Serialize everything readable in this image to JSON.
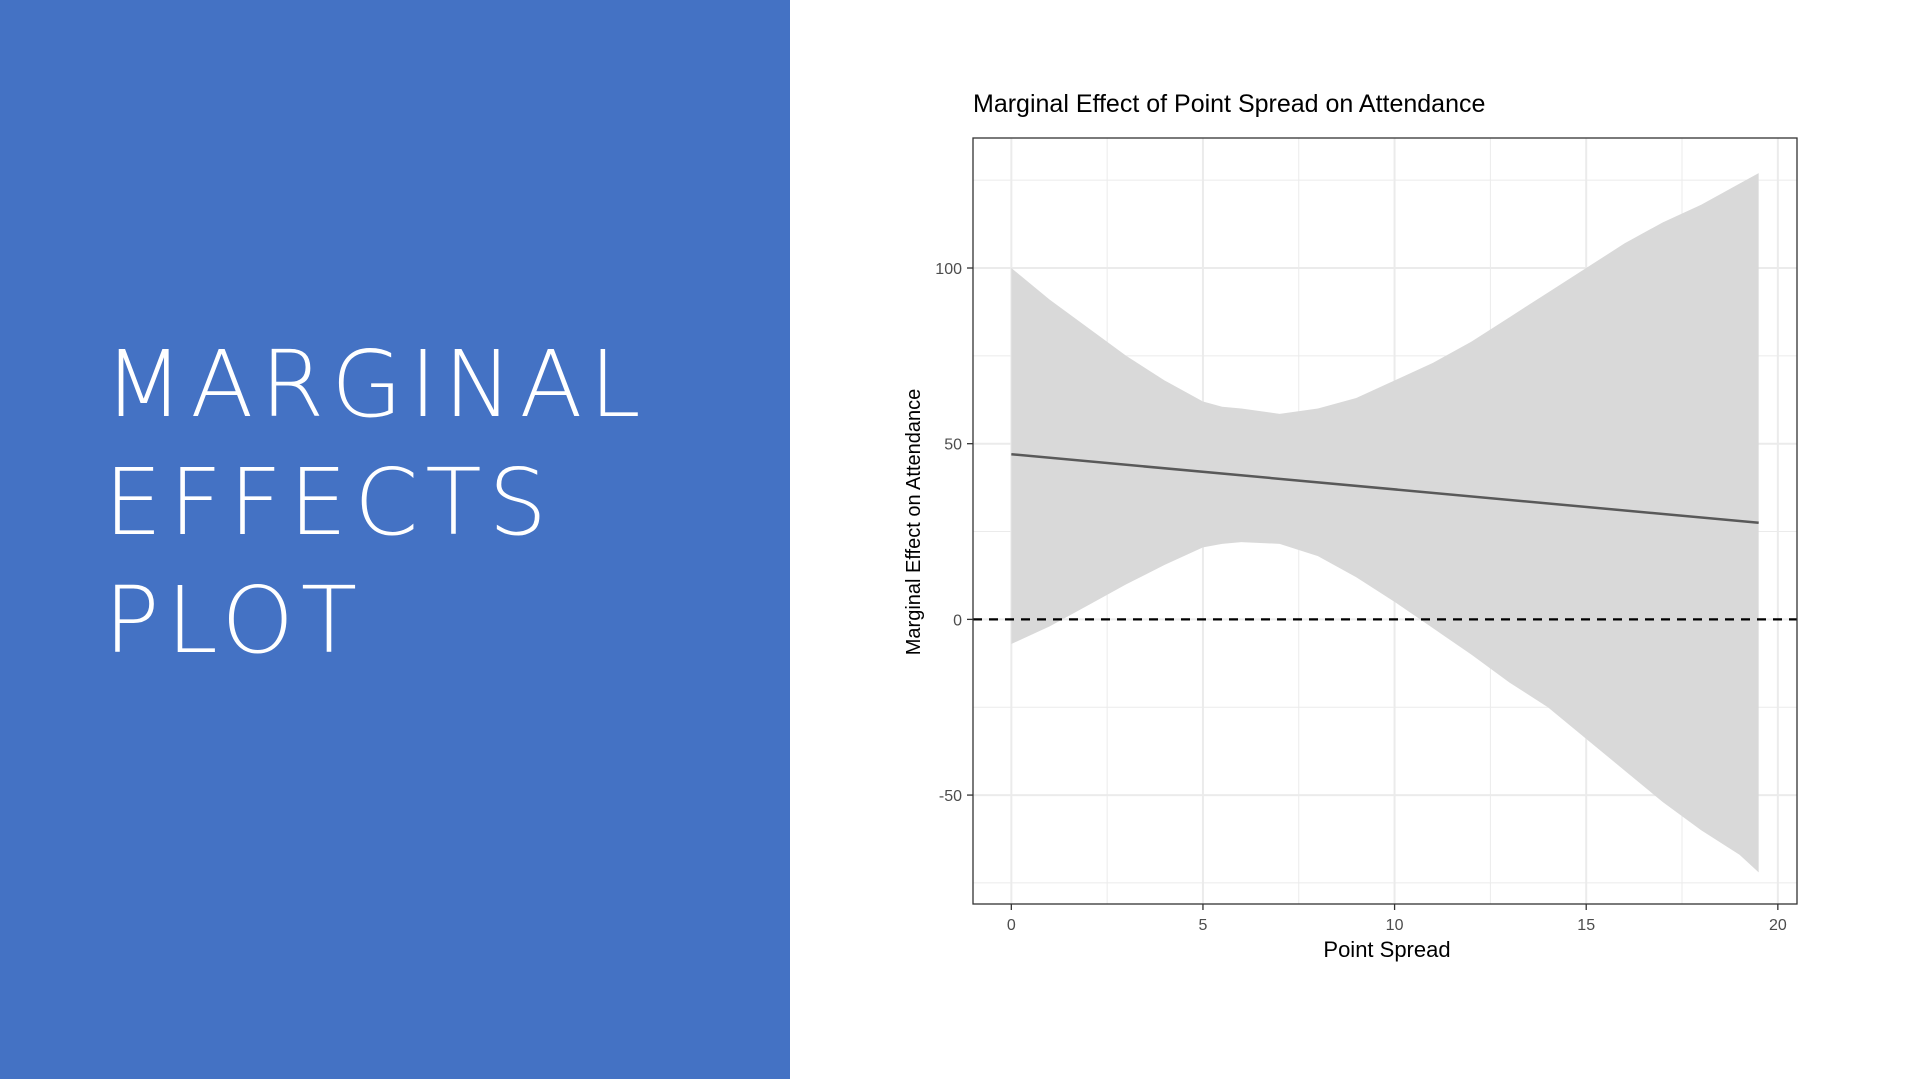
{
  "colors": {
    "panel_bg": "#4472c4",
    "panel_text": "#ffffff",
    "ribbon": "#d9d9d9",
    "line": "#595959",
    "zero_line": "#000000",
    "grid": "#ebebeb"
  },
  "slide": {
    "title_lines": [
      "MARGINAL",
      "EFFECTS",
      "PLOT"
    ]
  },
  "chart_data": {
    "type": "line",
    "title": "Marginal Effect of Point Spread on Attendance",
    "xlabel": "Point Spread",
    "ylabel": "Marginal Effect on Attendance",
    "xlim": [
      -1,
      20.5
    ],
    "ylim": [
      -81,
      137
    ],
    "x_ticks": [
      0,
      5,
      10,
      15,
      20
    ],
    "x_tick_labels": [
      "0",
      "5",
      "10",
      "15",
      "20"
    ],
    "y_ticks": [
      -50,
      0,
      50,
      100
    ],
    "y_tick_labels": [
      "-50",
      "0",
      "50",
      "100"
    ],
    "grid": true,
    "reference_line": {
      "y": 0,
      "style": "dashed"
    },
    "series": [
      {
        "x": [
          0,
          19.5
        ],
        "y": [
          47,
          27.5
        ],
        "ribbon_x": [
          0,
          1,
          2,
          3,
          4,
          5,
          5.5,
          6,
          7,
          8,
          9,
          10,
          11,
          12,
          13,
          14,
          15,
          16,
          17,
          18,
          19,
          19.5
        ],
        "ribbon_upper": [
          100,
          91,
          83,
          75,
          68,
          62,
          60.5,
          60,
          58.5,
          60,
          63,
          68,
          73,
          79,
          86,
          93,
          100,
          107,
          113,
          118,
          124,
          127
        ],
        "ribbon_lower": [
          -7,
          -2,
          4,
          10,
          15.5,
          20.5,
          21.5,
          22,
          21.5,
          18,
          12,
          5,
          -2.5,
          -10,
          -18,
          -25,
          -34,
          -43,
          -52,
          -60,
          -67,
          -72
        ]
      }
    ]
  }
}
